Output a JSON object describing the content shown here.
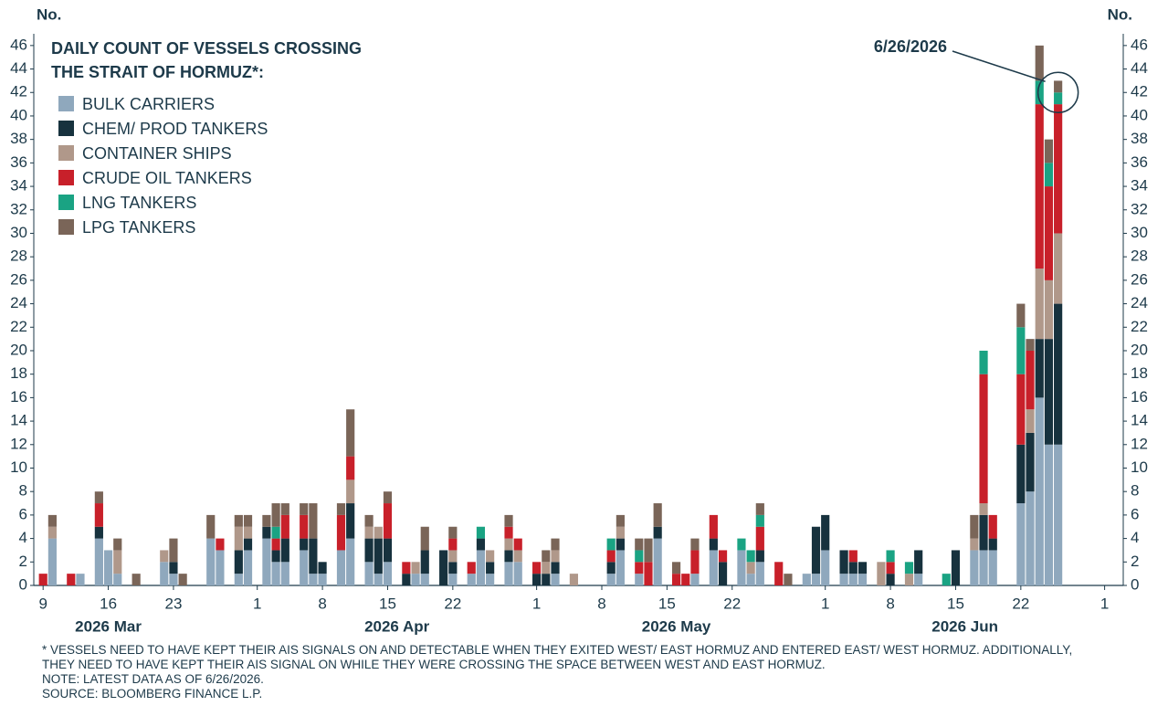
{
  "chart_data": {
    "type": "stacked_bar",
    "title": [
      "DAILY COUNT OF VESSELS CROSSING",
      "THE STRAIT OF HORMUZ*:"
    ],
    "y_label": "No.",
    "y2_label": "No.",
    "categories": [
      "2026-03-09",
      "2026-03-10",
      "2026-03-11",
      "2026-03-12",
      "2026-03-13",
      "2026-03-14",
      "2026-03-15",
      "2026-03-16",
      "2026-03-17",
      "2026-03-18",
      "2026-03-19",
      "2026-03-20",
      "2026-03-21",
      "2026-03-22",
      "2026-03-23",
      "2026-03-24",
      "2026-03-25",
      "2026-03-26",
      "2026-03-27",
      "2026-03-28",
      "2026-03-29",
      "2026-03-30",
      "2026-03-31",
      "2026-04-01",
      "2026-04-02",
      "2026-04-03",
      "2026-04-04",
      "2026-04-05",
      "2026-04-06",
      "2026-04-07",
      "2026-04-08",
      "2026-04-09",
      "2026-04-10",
      "2026-04-11",
      "2026-04-12",
      "2026-04-13",
      "2026-04-14",
      "2026-04-15",
      "2026-04-16",
      "2026-04-17",
      "2026-04-18",
      "2026-04-19",
      "2026-04-20",
      "2026-04-21",
      "2026-04-22",
      "2026-04-23",
      "2026-04-24",
      "2026-04-25",
      "2026-04-26",
      "2026-04-27",
      "2026-04-28",
      "2026-04-29",
      "2026-04-30",
      "2026-05-01",
      "2026-05-02",
      "2026-05-03",
      "2026-05-04",
      "2026-05-05",
      "2026-05-06",
      "2026-05-07",
      "2026-05-08",
      "2026-05-09",
      "2026-05-10",
      "2026-05-11",
      "2026-05-12",
      "2026-05-13",
      "2026-05-14",
      "2026-05-15",
      "2026-05-16",
      "2026-05-17",
      "2026-05-18",
      "2026-05-19",
      "2026-05-20",
      "2026-05-21",
      "2026-05-22",
      "2026-05-23",
      "2026-05-24",
      "2026-05-25",
      "2026-05-26",
      "2026-05-27",
      "2026-05-28",
      "2026-05-29",
      "2026-05-30",
      "2026-05-31",
      "2026-06-01",
      "2026-06-02",
      "2026-06-03",
      "2026-06-04",
      "2026-06-05",
      "2026-06-06",
      "2026-06-07",
      "2026-06-08",
      "2026-06-09",
      "2026-06-10",
      "2026-06-11",
      "2026-06-12",
      "2026-06-13",
      "2026-06-14",
      "2026-06-15",
      "2026-06-16",
      "2026-06-17",
      "2026-06-18",
      "2026-06-19",
      "2026-06-20",
      "2026-06-21",
      "2026-06-22",
      "2026-06-23",
      "2026-06-24",
      "2026-06-25",
      "2026-06-26"
    ],
    "series": [
      {
        "name": "BULK CARRIERS",
        "color": "#8fa8bd",
        "values": [
          0,
          4,
          0,
          0,
          1,
          0,
          4,
          3,
          1,
          0,
          0,
          0,
          0,
          2,
          1,
          0,
          0,
          0,
          4,
          3,
          0,
          1,
          3,
          0,
          4,
          2,
          2,
          0,
          3,
          1,
          1,
          0,
          3,
          4,
          0,
          2,
          1,
          2,
          0,
          0,
          1,
          1,
          0,
          0,
          1,
          0,
          1,
          3,
          1,
          0,
          2,
          2,
          0,
          0,
          0,
          1,
          0,
          0,
          0,
          0,
          0,
          1,
          3,
          0,
          1,
          0,
          4,
          0,
          0,
          0,
          1,
          0,
          3,
          0,
          0,
          3,
          1,
          2,
          0,
          0,
          0,
          0,
          1,
          1,
          3,
          0,
          1,
          1,
          1,
          0,
          0,
          0,
          0,
          0,
          1,
          0,
          0,
          0,
          0,
          0,
          3,
          3,
          3,
          0,
          0,
          7,
          8,
          16,
          12,
          12
        ]
      },
      {
        "name": "CHEM/ PROD TANKERS",
        "color": "#17323e",
        "values": [
          0,
          0,
          0,
          0,
          0,
          0,
          1,
          0,
          0,
          0,
          0,
          0,
          0,
          0,
          1,
          0,
          0,
          0,
          0,
          0,
          0,
          2,
          1,
          0,
          1,
          1,
          2,
          0,
          1,
          3,
          1,
          0,
          0,
          3,
          0,
          2,
          3,
          2,
          0,
          1,
          0,
          2,
          0,
          3,
          1,
          0,
          0,
          1,
          1,
          0,
          1,
          0,
          0,
          1,
          1,
          1,
          0,
          0,
          0,
          0,
          0,
          1,
          1,
          0,
          0,
          0,
          1,
          0,
          0,
          0,
          0,
          0,
          1,
          2,
          0,
          0,
          0,
          1,
          0,
          0,
          0,
          0,
          0,
          4,
          3,
          0,
          2,
          1,
          1,
          0,
          0,
          1,
          0,
          0,
          2,
          0,
          0,
          0,
          3,
          0,
          0,
          3,
          1,
          0,
          0,
          5,
          5,
          5,
          9,
          12
        ]
      },
      {
        "name": "CONTAINER SHIPS",
        "color": "#b0988a",
        "values": [
          0,
          1,
          0,
          0,
          0,
          0,
          0,
          0,
          2,
          0,
          0,
          0,
          0,
          1,
          0,
          0,
          0,
          0,
          0,
          0,
          0,
          2,
          1,
          0,
          0,
          0,
          0,
          0,
          0,
          0,
          0,
          0,
          0,
          2,
          0,
          1,
          1,
          0,
          0,
          0,
          1,
          0,
          0,
          0,
          1,
          0,
          0,
          0,
          1,
          0,
          1,
          1,
          0,
          0,
          1,
          1,
          0,
          1,
          0,
          0,
          0,
          0,
          1,
          0,
          0,
          0,
          0,
          0,
          0,
          0,
          0,
          0,
          0,
          0,
          0,
          0,
          1,
          0,
          0,
          0,
          0,
          0,
          0,
          0,
          0,
          0,
          0,
          0,
          0,
          0,
          2,
          0,
          0,
          1,
          0,
          0,
          0,
          0,
          0,
          0,
          1,
          1,
          0,
          0,
          0,
          0,
          2,
          6,
          5,
          6
        ]
      },
      {
        "name": "CRUDE OIL TANKERS",
        "color": "#c8202a",
        "values": [
          1,
          0,
          0,
          1,
          0,
          0,
          2,
          0,
          0,
          0,
          0,
          0,
          0,
          0,
          0,
          0,
          0,
          0,
          0,
          1,
          0,
          0,
          0,
          0,
          0,
          1,
          2,
          0,
          2,
          0,
          0,
          0,
          3,
          2,
          0,
          0,
          0,
          3,
          0,
          1,
          0,
          0,
          0,
          0,
          1,
          0,
          1,
          0,
          0,
          0,
          1,
          1,
          0,
          1,
          0,
          0,
          0,
          0,
          0,
          0,
          0,
          1,
          0,
          0,
          1,
          2,
          0,
          0,
          1,
          1,
          2,
          0,
          2,
          1,
          0,
          0,
          0,
          2,
          0,
          2,
          0,
          0,
          0,
          0,
          0,
          0,
          0,
          1,
          0,
          0,
          0,
          1,
          0,
          0,
          0,
          0,
          0,
          0,
          0,
          0,
          0,
          11,
          2,
          0,
          0,
          6,
          5,
          14,
          8,
          11
        ]
      },
      {
        "name": "LNG TANKERS",
        "color": "#1aa383",
        "values": [
          0,
          0,
          0,
          0,
          0,
          0,
          0,
          0,
          0,
          0,
          0,
          0,
          0,
          0,
          0,
          0,
          0,
          0,
          0,
          0,
          0,
          0,
          0,
          0,
          0,
          1,
          0,
          0,
          0,
          0,
          0,
          0,
          0,
          0,
          0,
          0,
          0,
          0,
          0,
          0,
          0,
          0,
          0,
          0,
          0,
          0,
          0,
          1,
          0,
          0,
          0,
          0,
          0,
          0,
          0,
          0,
          0,
          0,
          0,
          0,
          0,
          1,
          0,
          0,
          1,
          0,
          0,
          0,
          0,
          0,
          0,
          0,
          0,
          0,
          0,
          1,
          1,
          1,
          0,
          0,
          0,
          0,
          0,
          0,
          0,
          0,
          0,
          0,
          0,
          0,
          0,
          1,
          0,
          1,
          0,
          0,
          0,
          1,
          0,
          0,
          0,
          2,
          0,
          0,
          0,
          4,
          0,
          2,
          2,
          1
        ]
      },
      {
        "name": "LPG TANKERS",
        "color": "#7a6558",
        "values": [
          0,
          1,
          0,
          0,
          0,
          0,
          1,
          0,
          1,
          0,
          1,
          0,
          0,
          0,
          2,
          1,
          0,
          0,
          2,
          0,
          0,
          1,
          1,
          0,
          1,
          2,
          1,
          0,
          1,
          3,
          0,
          0,
          1,
          4,
          0,
          1,
          0,
          1,
          0,
          0,
          0,
          2,
          0,
          0,
          1,
          0,
          0,
          0,
          0,
          0,
          1,
          0,
          0,
          0,
          1,
          1,
          0,
          0,
          0,
          0,
          0,
          0,
          1,
          0,
          1,
          2,
          2,
          0,
          1,
          0,
          1,
          0,
          0,
          0,
          0,
          0,
          0,
          1,
          0,
          0,
          1,
          0,
          0,
          0,
          0,
          0,
          0,
          0,
          0,
          0,
          0,
          0,
          0,
          0,
          0,
          0,
          0,
          0,
          0,
          0,
          2,
          0,
          0,
          0,
          0,
          2,
          1,
          3,
          2,
          1
        ]
      }
    ],
    "xlim": [
      "2026-03-08",
      "2026-07-03"
    ],
    "xticks": [
      {
        "value": "2026-03-09",
        "label": "9"
      },
      {
        "value": "2026-03-16",
        "label": "16"
      },
      {
        "value": "2026-03-23",
        "label": "23"
      },
      {
        "value": "2026-04-01",
        "label": "1"
      },
      {
        "value": "2026-04-08",
        "label": "8"
      },
      {
        "value": "2026-04-15",
        "label": "15"
      },
      {
        "value": "2026-04-22",
        "label": "22"
      },
      {
        "value": "2026-05-01",
        "label": "1"
      },
      {
        "value": "2026-05-08",
        "label": "8"
      },
      {
        "value": "2026-05-15",
        "label": "15"
      },
      {
        "value": "2026-05-22",
        "label": "22"
      },
      {
        "value": "2026-06-01",
        "label": "1"
      },
      {
        "value": "2026-06-08",
        "label": "8"
      },
      {
        "value": "2026-06-15",
        "label": "15"
      },
      {
        "value": "2026-06-22",
        "label": "22"
      },
      {
        "value": "2026-07-01",
        "label": "1"
      }
    ],
    "month_labels": [
      {
        "value": "2026-03-16",
        "label": "2026 Mar"
      },
      {
        "value": "2026-04-16",
        "label": "2026 Apr"
      },
      {
        "value": "2026-05-16",
        "label": "2026 May"
      },
      {
        "value": "2026-06-16",
        "label": "2026 Jun"
      }
    ],
    "ylim": [
      0,
      47
    ],
    "yticks": [
      0,
      2,
      4,
      6,
      8,
      10,
      12,
      14,
      16,
      18,
      20,
      22,
      24,
      26,
      28,
      30,
      32,
      34,
      36,
      38,
      40,
      42,
      44,
      46
    ],
    "legend": "upper left",
    "annotation": {
      "text": "6/26/2026",
      "x": "2026-06-26",
      "y": 42
    },
    "notes": [
      "* VESSELS NEED TO HAVE KEPT THEIR AIS SIGNALS ON AND DETECTABLE WHEN THEY EXITED WEST/ EAST HORMUZ AND ENTERED EAST/ WEST HORMUZ. ADDITIONALLY, THEY NEED TO HAVE KEPT THEIR AIS SIGNAL ON WHILE THEY WERE CROSSING THE SPACE BETWEEN WEST AND EAST HORMUZ.",
      "NOTE: LATEST DATA AS OF 6/26/2026.",
      "SOURCE: BLOOMBERG FINANCE L.P."
    ]
  }
}
